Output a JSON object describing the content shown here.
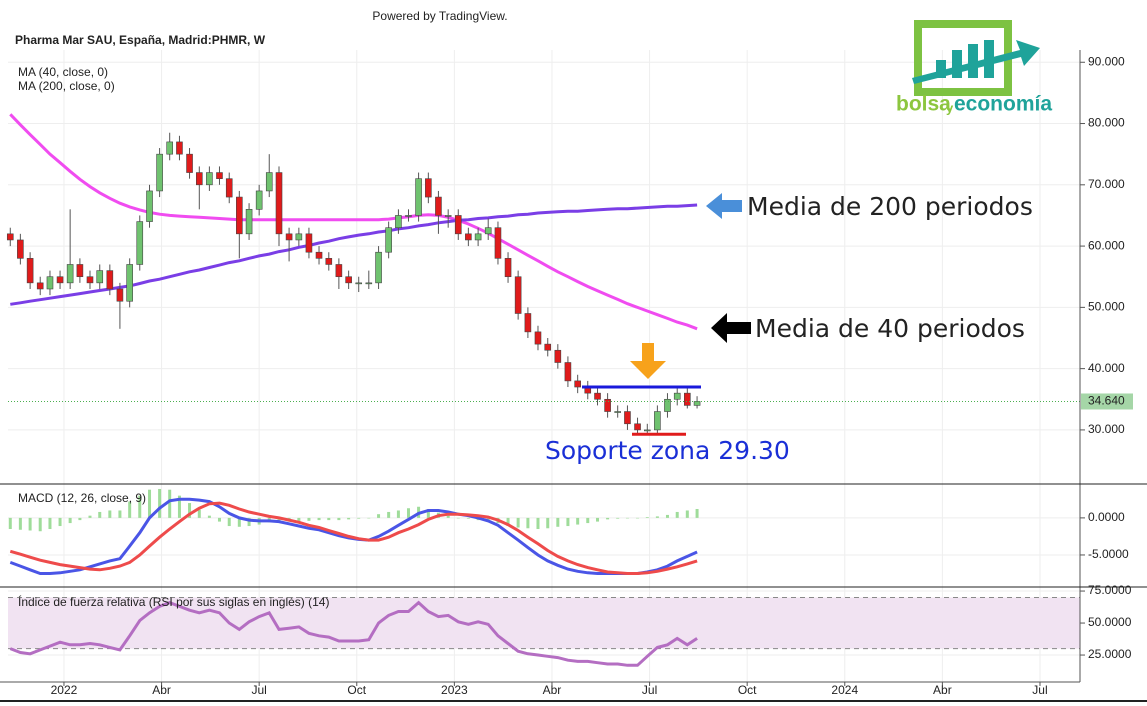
{
  "logo": [
    "bolsa",
    "y",
    "economía"
  ],
  "chart_data": [
    {
      "type": "candlestick",
      "source": "Powered by TradingView.",
      "title": "Pharma Mar SAU, España, Madrid:PHMR, W",
      "xlim": [
        -1.72,
        31.23
      ],
      "xticks": [
        {
          "value": 0,
          "label": "2022"
        },
        {
          "value": 3,
          "label": "Abr"
        },
        {
          "value": 6,
          "label": "Jul"
        },
        {
          "value": 9,
          "label": "Oct"
        },
        {
          "value": 12,
          "label": "2023"
        },
        {
          "value": 15,
          "label": "Abr"
        },
        {
          "value": 18,
          "label": "Jul"
        },
        {
          "value": 21,
          "label": "Oct"
        },
        {
          "value": 24,
          "label": "2024"
        },
        {
          "value": 27,
          "label": "Abr"
        },
        {
          "value": 30,
          "label": "Jul"
        }
      ],
      "ylim": [
        21.5,
        92
      ],
      "yticks": [
        {
          "value": 90,
          "label": "90.000"
        },
        {
          "value": 80,
          "label": "80.000"
        },
        {
          "value": 70,
          "label": "70.000"
        },
        {
          "value": 60,
          "label": "60.000"
        },
        {
          "value": 50,
          "label": "50.000"
        },
        {
          "value": 40,
          "label": "40.000"
        },
        {
          "value": 30,
          "label": "30.000"
        }
      ],
      "grid": true,
      "up_color": "#6fc26f",
      "down_color": "#e01b1b",
      "x": [
        -1.65,
        -1.34,
        -1.04,
        -0.73,
        -0.43,
        -0.12,
        0.19,
        0.49,
        0.8,
        1.1,
        1.41,
        1.72,
        2.02,
        2.33,
        2.63,
        2.94,
        3.25,
        3.55,
        3.86,
        4.16,
        4.47,
        4.78,
        5.08,
        5.39,
        5.69,
        6.0,
        6.31,
        6.61,
        6.92,
        7.22,
        7.53,
        7.84,
        8.14,
        8.45,
        8.75,
        9.06,
        9.37,
        9.67,
        9.98,
        10.28,
        10.59,
        10.9,
        11.2,
        11.51,
        11.81,
        12.12,
        12.43,
        12.73,
        13.04,
        13.34,
        13.65,
        13.96,
        14.26,
        14.57,
        14.87,
        15.18,
        15.49,
        15.79,
        16.1,
        16.4,
        16.71,
        17.02,
        17.32,
        17.63,
        17.93,
        18.24,
        18.55,
        18.85,
        19.16,
        19.46
      ],
      "open": [
        62,
        61,
        58,
        54,
        53,
        55,
        54,
        57,
        55,
        54,
        56,
        53,
        51,
        57,
        64,
        69,
        75,
        77,
        75,
        72,
        70,
        72,
        71,
        68,
        62,
        66,
        69,
        72,
        62,
        61,
        62,
        59,
        58,
        57,
        55,
        54,
        54,
        54,
        59,
        63,
        65,
        65,
        71,
        68,
        65,
        65,
        62,
        61,
        62,
        63,
        58,
        55,
        49,
        46,
        44,
        43,
        41,
        38,
        37,
        36,
        35,
        33,
        33,
        31,
        30,
        30,
        33,
        35,
        36,
        34
      ],
      "high": [
        63,
        62,
        59,
        55,
        56,
        56,
        66,
        58,
        56,
        57,
        57,
        54,
        58,
        65,
        70,
        76,
        78.5,
        78,
        76,
        73,
        73,
        73,
        72,
        69,
        67,
        70,
        75,
        73,
        63,
        63,
        63,
        60,
        59,
        58,
        56,
        55,
        56,
        60,
        64,
        66,
        66,
        72,
        72,
        69,
        66,
        66,
        63,
        63,
        64.5,
        64,
        59,
        56,
        50,
        47,
        45,
        44,
        42,
        39,
        38,
        37,
        36,
        34,
        34,
        32,
        31,
        34,
        36,
        37,
        37,
        35.5
      ],
      "low": [
        60,
        57,
        53,
        52,
        52,
        53,
        53,
        54,
        53,
        53,
        52,
        46.5,
        50,
        56,
        63,
        68,
        74,
        74,
        71,
        66,
        69,
        70,
        67,
        58,
        61,
        65,
        68,
        60,
        57.5,
        60,
        58,
        57,
        56,
        53,
        53,
        52.5,
        53,
        53,
        58,
        62,
        64,
        64,
        67,
        62,
        63,
        61,
        60,
        60,
        61,
        57,
        54,
        48,
        45,
        43,
        42,
        40,
        37,
        36,
        35,
        34,
        32,
        32,
        30,
        29.3,
        29.3,
        29.5,
        32,
        34,
        33.5,
        33.5
      ],
      "close": [
        61,
        58,
        54,
        53,
        55,
        54,
        57,
        55,
        54,
        56,
        53,
        51,
        57,
        64,
        69,
        75,
        77,
        75,
        72,
        70,
        72,
        71,
        68,
        62,
        66,
        69,
        72,
        62,
        61,
        62,
        59,
        58,
        57,
        55,
        54,
        54,
        54,
        59,
        63,
        65,
        65,
        71,
        68,
        65,
        65,
        62,
        61,
        62,
        63,
        58,
        55,
        49,
        46,
        44,
        43,
        41,
        38,
        37,
        36,
        35,
        33,
        33,
        31,
        30,
        30,
        33,
        35,
        36,
        34,
        34.64
      ],
      "series": [
        {
          "name": "MA (40, close, 0)",
          "color": "#f04cf0",
          "values": [
            81.5,
            79.8,
            78.2,
            76.6,
            75.0,
            73.6,
            72.2,
            70.9,
            69.7,
            68.7,
            67.8,
            67.0,
            66.4,
            65.9,
            65.5,
            65.2,
            65.0,
            64.9,
            64.8,
            64.7,
            64.6,
            64.5,
            64.4,
            64.3,
            64.3,
            64.3,
            64.3,
            64.3,
            64.3,
            64.3,
            64.3,
            64.3,
            64.3,
            64.3,
            64.3,
            64.3,
            64.3,
            64.3,
            64.4,
            64.6,
            64.8,
            65.0,
            65.1,
            65.0,
            64.7,
            64.2,
            63.6,
            62.9,
            62.1,
            61.2,
            60.3,
            59.4,
            58.5,
            57.6,
            56.7,
            55.8,
            55.0,
            54.2,
            53.4,
            52.7,
            52.0,
            51.3,
            50.6,
            50.0,
            49.4,
            48.8,
            48.2,
            47.6,
            47.1,
            46.5
          ]
        },
        {
          "name": "MA (200, close, 0)",
          "color": "#7a3ee6",
          "values": [
            50.5,
            50.75,
            51.0,
            51.25,
            51.5,
            51.75,
            52.0,
            52.25,
            52.5,
            52.75,
            53.0,
            53.25,
            53.5,
            53.9,
            54.3,
            54.6,
            55.0,
            55.4,
            55.8,
            56.1,
            56.5,
            56.9,
            57.3,
            57.6,
            58.0,
            58.4,
            58.7,
            59.1,
            59.4,
            59.8,
            60.1,
            60.5,
            60.8,
            61.2,
            61.5,
            61.8,
            62.0,
            62.3,
            62.5,
            62.8,
            63.0,
            63.3,
            63.5,
            63.8,
            64.0,
            64.2,
            64.3,
            64.5,
            64.6,
            64.8,
            64.9,
            65.1,
            65.2,
            65.4,
            65.5,
            65.6,
            65.7,
            65.7,
            65.8,
            65.9,
            66.0,
            66.1,
            66.1,
            66.2,
            66.3,
            66.4,
            66.5,
            66.5,
            66.6,
            66.7
          ]
        }
      ],
      "last_price": {
        "value": 34.64,
        "label": "34.640"
      },
      "resistance": 37,
      "support": 29.3,
      "annotations": [
        "Media de 200 periodos",
        "Media de 40 periodos",
        "Soporte zona 29.30"
      ]
    },
    {
      "type": "macd",
      "title": "MACD (12, 26, close, 9)",
      "ylim": [
        -9.05,
        4.3
      ],
      "yticks": [
        {
          "value": 0,
          "label": "0.0000"
        },
        {
          "value": -5,
          "label": "-5.0000"
        }
      ],
      "histogram": {
        "color": "#9fdc9a",
        "values": [
          -1.5,
          -1.6,
          -1.7,
          -1.8,
          -1.5,
          -1.1,
          -0.7,
          -0.3,
          0.3,
          0.8,
          1.0,
          1.0,
          2.2,
          3.0,
          3.8,
          3.9,
          3.8,
          3.0,
          2.0,
          1.1,
          0.3,
          -0.5,
          -1.1,
          -1.2,
          -1.1,
          -0.9,
          -0.6,
          -0.5,
          -0.5,
          -0.5,
          -0.4,
          -0.3,
          -0.3,
          -0.3,
          -0.2,
          -0.1,
          0.0,
          0.5,
          0.8,
          1.0,
          1.3,
          1.5,
          1.2,
          0.7,
          0.3,
          0.0,
          -0.1,
          -0.3,
          -0.5,
          -0.7,
          -1.1,
          -1.3,
          -1.4,
          -1.5,
          -1.4,
          -1.2,
          -1.1,
          -0.9,
          -0.7,
          -0.5,
          -0.2,
          -0.1,
          0.0,
          0.0,
          0.1,
          0.2,
          0.4,
          0.8,
          1.0,
          1.2
        ]
      },
      "series": [
        {
          "color": "#4a55e6",
          "values": [
            -6.0,
            -6.5,
            -7.0,
            -7.5,
            -7.5,
            -7.4,
            -7.2,
            -7.0,
            -6.6,
            -6.2,
            -5.8,
            -5.5,
            -3.8,
            -2.0,
            0.0,
            1.3,
            2.3,
            2.5,
            2.5,
            2.4,
            2.2,
            1.5,
            0.6,
            0.0,
            -0.3,
            -0.4,
            -0.4,
            -0.5,
            -0.8,
            -1.1,
            -1.4,
            -1.6,
            -2.0,
            -2.4,
            -2.7,
            -2.9,
            -3.0,
            -2.5,
            -1.8,
            -1.0,
            -0.2,
            0.6,
            1.0,
            1.0,
            0.8,
            0.5,
            0.3,
            0.0,
            -0.4,
            -1.0,
            -2.0,
            -3.0,
            -4.0,
            -5.0,
            -5.8,
            -6.4,
            -6.9,
            -7.2,
            -7.4,
            -7.5,
            -7.5,
            -7.5,
            -7.5,
            -7.5,
            -7.3,
            -7.0,
            -6.5,
            -5.8,
            -5.2,
            -4.6
          ]
        },
        {
          "color": "#ee4b4b",
          "values": [
            -4.5,
            -4.9,
            -5.3,
            -5.7,
            -6.0,
            -6.3,
            -6.5,
            -6.7,
            -6.9,
            -7.0,
            -6.8,
            -6.5,
            -6.0,
            -5.0,
            -3.8,
            -2.6,
            -1.5,
            -0.5,
            0.5,
            1.3,
            1.9,
            2.0,
            1.7,
            1.2,
            0.8,
            0.5,
            0.2,
            0.0,
            -0.3,
            -0.6,
            -1.0,
            -1.3,
            -1.7,
            -2.1,
            -2.5,
            -2.8,
            -3.0,
            -3.0,
            -2.6,
            -2.0,
            -1.5,
            -0.9,
            -0.2,
            0.3,
            0.5,
            0.5,
            0.4,
            0.3,
            0.1,
            -0.3,
            -0.9,
            -1.7,
            -2.6,
            -3.5,
            -4.4,
            -5.2,
            -5.8,
            -6.3,
            -6.7,
            -7.0,
            -7.3,
            -7.4,
            -7.5,
            -7.5,
            -7.4,
            -7.2,
            -6.9,
            -6.6,
            -6.2,
            -5.8
          ]
        }
      ]
    },
    {
      "type": "line",
      "title": "Índice de fuerza relativa (RSI por sus siglas en inglés) (14)",
      "ylim": [
        5.5,
        76.6
      ],
      "yticks": [
        {
          "value": 75,
          "label": "75.0000"
        },
        {
          "value": 50,
          "label": "50.0000"
        },
        {
          "value": 25,
          "label": "25.0000"
        }
      ],
      "band": [
        30,
        70
      ],
      "band_color": "#f1e3f2",
      "series": [
        {
          "color": "#b46ec2",
          "values": [
            30,
            27,
            26,
            29,
            32,
            35,
            33,
            33,
            34,
            33,
            31,
            29,
            40,
            52,
            58,
            63,
            66,
            63,
            60,
            58,
            60,
            58,
            50,
            45,
            51,
            55,
            58,
            45,
            46,
            47,
            42,
            40,
            39,
            36,
            36,
            36,
            37,
            50,
            56,
            59,
            59,
            66,
            59,
            55,
            56,
            51,
            49,
            51,
            49,
            40,
            34,
            28,
            26,
            25,
            24,
            23,
            21,
            20,
            20,
            19,
            18,
            18,
            17,
            17,
            24,
            31,
            33,
            38,
            33,
            38
          ]
        }
      ]
    }
  ]
}
